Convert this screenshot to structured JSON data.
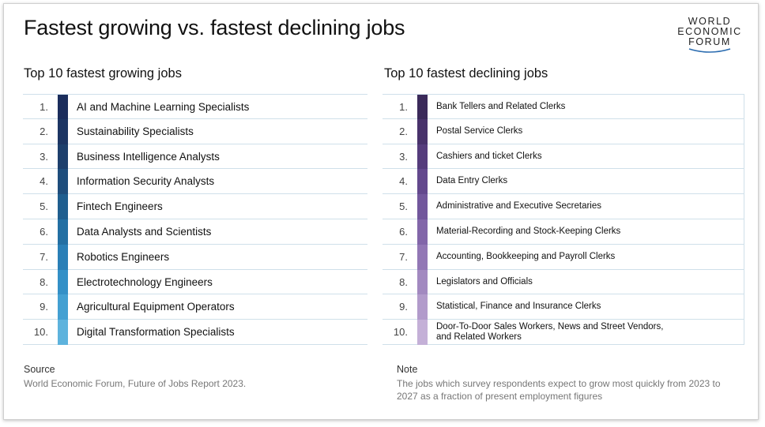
{
  "title": "Fastest growing vs. fastest declining jobs",
  "logo": {
    "line1": "WORLD",
    "line2": "ECONOMIC",
    "line3": "FORUM"
  },
  "growing": {
    "heading": "Top 10 fastest growing jobs",
    "items": [
      {
        "rank": "1.",
        "label": "AI and Machine Learning Specialists",
        "color": "#1b2d5c"
      },
      {
        "rank": "2.",
        "label": "Sustainability Specialists",
        "color": "#1c3563"
      },
      {
        "rank": "3.",
        "label": "Business Intelligence Analysts",
        "color": "#1d3f6c"
      },
      {
        "rank": "4.",
        "label": "Information Security Analysts",
        "color": "#1e4d7c"
      },
      {
        "rank": "5.",
        "label": "Fintech Engineers",
        "color": "#1f5e8f"
      },
      {
        "rank": "6.",
        "label": "Data Analysts and Scientists",
        "color": "#236fa3"
      },
      {
        "rank": "7.",
        "label": "Robotics Engineers",
        "color": "#2a7fb7"
      },
      {
        "rank": "8.",
        "label": "Electrotechnology Engineers",
        "color": "#3390c7"
      },
      {
        "rank": "9.",
        "label": "Agricultural Equipment Operators",
        "color": "#43a0d2"
      },
      {
        "rank": "10.",
        "label": "Digital Transformation Specialists",
        "color": "#5eb3dd"
      }
    ]
  },
  "declining": {
    "heading": "Top 10 fastest declining jobs",
    "items": [
      {
        "rank": "1.",
        "label": "Bank Tellers and Related Clerks",
        "color": "#3b2a5a"
      },
      {
        "rank": "2.",
        "label": "Postal Service Clerks",
        "color": "#48326b"
      },
      {
        "rank": "3.",
        "label": "Cashiers and ticket Clerks",
        "color": "#553c7c"
      },
      {
        "rank": "4.",
        "label": "Data Entry Clerks",
        "color": "#63488d"
      },
      {
        "rank": "5.",
        "label": "Administrative and Executive Secretaries",
        "color": "#72579c"
      },
      {
        "rank": "6.",
        "label": "Material-Recording and Stock-Keeping Clerks",
        "color": "#8266a9"
      },
      {
        "rank": "7.",
        "label": "Accounting, Bookkeeping and Payroll Clerks",
        "color": "#9277b5"
      },
      {
        "rank": "8.",
        "label": "Legislators and Officials",
        "color": "#a289c0"
      },
      {
        "rank": "9.",
        "label": "Statistical, Finance and Insurance Clerks",
        "color": "#b29bcb"
      },
      {
        "rank": "10.",
        "label": "Door-To-Door Sales Workers, News and Street Vendors,",
        "label2": "and Related Workers",
        "color": "#c4b0d7"
      }
    ]
  },
  "source": {
    "heading": "Source",
    "text": "World Economic Forum, Future of Jobs Report 2023."
  },
  "note": {
    "heading": "Note",
    "line1": "The jobs which survey respondents expect to grow most quickly from 2023 to",
    "line2": "2027 as a fraction of present employment figures"
  }
}
